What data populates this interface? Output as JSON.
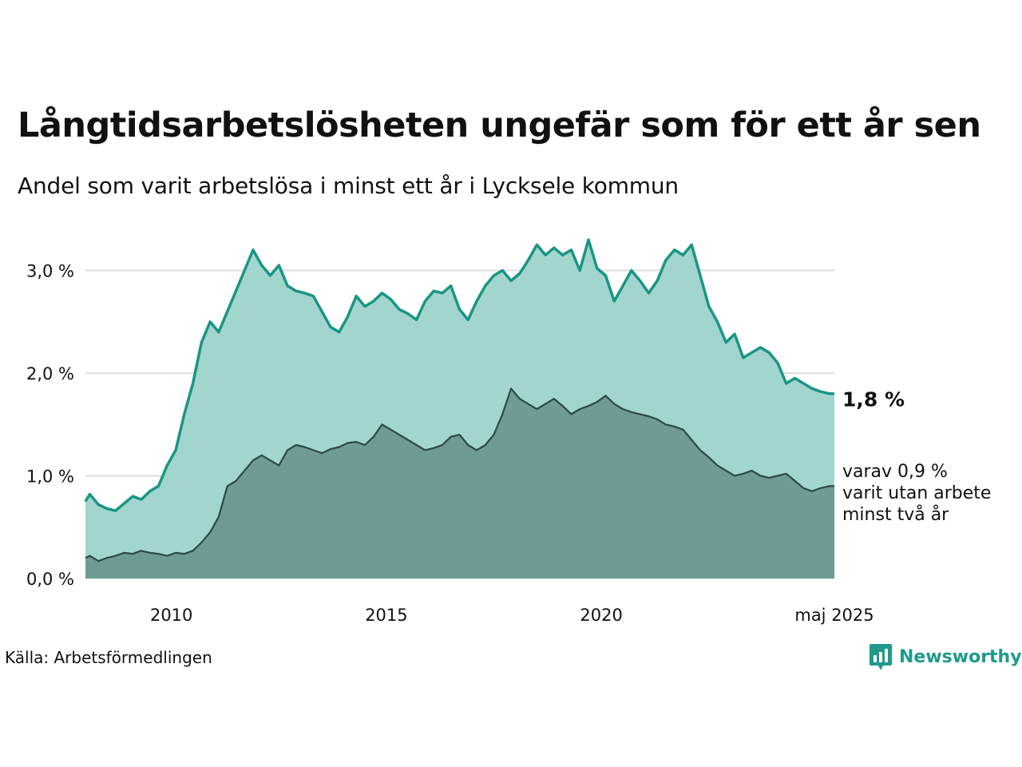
{
  "title": "Långtidsarbetslösheten ungefär som för ett år sen",
  "subtitle": "Andel som varit arbetslösa i minst ett år i Lycksele kommun",
  "source": "Källa: Arbetsförmedlingen",
  "brand": "Newsworthy",
  "colors": {
    "primary_line": "#1a9585",
    "primary_fill": "#a3d5cf",
    "secondary_line": "#2a4a44",
    "secondary_fill": "#6e9c95",
    "grid": "#dddddd",
    "brand": "#1f9a8c"
  },
  "chart_data": {
    "type": "area",
    "x_ticks": [
      "2010",
      "2015",
      "2020",
      "maj 2025"
    ],
    "y_ticks": [
      "0,0 %",
      "1,0 %",
      "2,0 %",
      "3,0 %"
    ],
    "ylim": [
      0,
      3.3
    ],
    "xlim": [
      "2008-01",
      "2025-05"
    ],
    "end_label_primary": "1,8 %",
    "end_label_secondary": [
      "varav 0,9 %",
      "varit utan arbete",
      "minst två år"
    ],
    "series": [
      {
        "key": "minst_ett_ar",
        "values": [
          [
            2008.0,
            0.75
          ],
          [
            2008.1,
            0.82
          ],
          [
            2008.3,
            0.72
          ],
          [
            2008.5,
            0.68
          ],
          [
            2008.7,
            0.66
          ],
          [
            2008.9,
            0.73
          ],
          [
            2009.1,
            0.8
          ],
          [
            2009.3,
            0.77
          ],
          [
            2009.5,
            0.85
          ],
          [
            2009.7,
            0.9
          ],
          [
            2009.9,
            1.1
          ],
          [
            2010.1,
            1.25
          ],
          [
            2010.3,
            1.6
          ],
          [
            2010.5,
            1.9
          ],
          [
            2010.7,
            2.3
          ],
          [
            2010.9,
            2.5
          ],
          [
            2011.1,
            2.4
          ],
          [
            2011.3,
            2.6
          ],
          [
            2011.5,
            2.8
          ],
          [
            2011.7,
            3.0
          ],
          [
            2011.9,
            3.2
          ],
          [
            2012.1,
            3.05
          ],
          [
            2012.3,
            2.95
          ],
          [
            2012.5,
            3.05
          ],
          [
            2012.7,
            2.85
          ],
          [
            2012.9,
            2.8
          ],
          [
            2013.1,
            2.78
          ],
          [
            2013.3,
            2.75
          ],
          [
            2013.5,
            2.6
          ],
          [
            2013.7,
            2.45
          ],
          [
            2013.9,
            2.4
          ],
          [
            2014.1,
            2.55
          ],
          [
            2014.3,
            2.75
          ],
          [
            2014.5,
            2.65
          ],
          [
            2014.7,
            2.7
          ],
          [
            2014.9,
            2.78
          ],
          [
            2015.1,
            2.72
          ],
          [
            2015.3,
            2.62
          ],
          [
            2015.5,
            2.58
          ],
          [
            2015.7,
            2.52
          ],
          [
            2015.9,
            2.7
          ],
          [
            2016.1,
            2.8
          ],
          [
            2016.3,
            2.78
          ],
          [
            2016.5,
            2.85
          ],
          [
            2016.7,
            2.62
          ],
          [
            2016.9,
            2.52
          ],
          [
            2017.1,
            2.7
          ],
          [
            2017.3,
            2.85
          ],
          [
            2017.5,
            2.95
          ],
          [
            2017.7,
            3.0
          ],
          [
            2017.9,
            2.9
          ],
          [
            2018.1,
            2.97
          ],
          [
            2018.3,
            3.1
          ],
          [
            2018.5,
            3.25
          ],
          [
            2018.7,
            3.15
          ],
          [
            2018.9,
            3.22
          ],
          [
            2019.1,
            3.15
          ],
          [
            2019.3,
            3.2
          ],
          [
            2019.5,
            3.0
          ],
          [
            2019.7,
            3.3
          ],
          [
            2019.9,
            3.02
          ],
          [
            2020.1,
            2.95
          ],
          [
            2020.3,
            2.7
          ],
          [
            2020.5,
            2.85
          ],
          [
            2020.7,
            3.0
          ],
          [
            2020.9,
            2.9
          ],
          [
            2021.1,
            2.78
          ],
          [
            2021.3,
            2.9
          ],
          [
            2021.5,
            3.1
          ],
          [
            2021.7,
            3.2
          ],
          [
            2021.9,
            3.15
          ],
          [
            2022.1,
            3.25
          ],
          [
            2022.3,
            2.95
          ],
          [
            2022.5,
            2.65
          ],
          [
            2022.7,
            2.5
          ],
          [
            2022.9,
            2.3
          ],
          [
            2023.1,
            2.38
          ],
          [
            2023.3,
            2.15
          ],
          [
            2023.5,
            2.2
          ],
          [
            2023.7,
            2.25
          ],
          [
            2023.9,
            2.2
          ],
          [
            2024.1,
            2.1
          ],
          [
            2024.3,
            1.9
          ],
          [
            2024.5,
            1.95
          ],
          [
            2024.7,
            1.9
          ],
          [
            2024.9,
            1.85
          ],
          [
            2025.1,
            1.82
          ],
          [
            2025.3,
            1.8
          ],
          [
            2025.42,
            1.8
          ]
        ]
      },
      {
        "key": "minst_tva_ar",
        "values": [
          [
            2008.0,
            0.2
          ],
          [
            2008.1,
            0.22
          ],
          [
            2008.3,
            0.17
          ],
          [
            2008.5,
            0.2
          ],
          [
            2008.7,
            0.22
          ],
          [
            2008.9,
            0.25
          ],
          [
            2009.1,
            0.24
          ],
          [
            2009.3,
            0.27
          ],
          [
            2009.5,
            0.25
          ],
          [
            2009.7,
            0.24
          ],
          [
            2009.9,
            0.22
          ],
          [
            2010.1,
            0.25
          ],
          [
            2010.3,
            0.24
          ],
          [
            2010.5,
            0.27
          ],
          [
            2010.7,
            0.35
          ],
          [
            2010.9,
            0.45
          ],
          [
            2011.1,
            0.6
          ],
          [
            2011.3,
            0.9
          ],
          [
            2011.5,
            0.95
          ],
          [
            2011.7,
            1.05
          ],
          [
            2011.9,
            1.15
          ],
          [
            2012.1,
            1.2
          ],
          [
            2012.3,
            1.15
          ],
          [
            2012.5,
            1.1
          ],
          [
            2012.7,
            1.25
          ],
          [
            2012.9,
            1.3
          ],
          [
            2013.1,
            1.28
          ],
          [
            2013.3,
            1.25
          ],
          [
            2013.5,
            1.22
          ],
          [
            2013.7,
            1.26
          ],
          [
            2013.9,
            1.28
          ],
          [
            2014.1,
            1.32
          ],
          [
            2014.3,
            1.33
          ],
          [
            2014.5,
            1.3
          ],
          [
            2014.7,
            1.38
          ],
          [
            2014.9,
            1.5
          ],
          [
            2015.1,
            1.45
          ],
          [
            2015.3,
            1.4
          ],
          [
            2015.5,
            1.35
          ],
          [
            2015.7,
            1.3
          ],
          [
            2015.9,
            1.25
          ],
          [
            2016.1,
            1.27
          ],
          [
            2016.3,
            1.3
          ],
          [
            2016.5,
            1.38
          ],
          [
            2016.7,
            1.4
          ],
          [
            2016.9,
            1.3
          ],
          [
            2017.1,
            1.25
          ],
          [
            2017.3,
            1.3
          ],
          [
            2017.5,
            1.4
          ],
          [
            2017.7,
            1.6
          ],
          [
            2017.9,
            1.85
          ],
          [
            2018.1,
            1.75
          ],
          [
            2018.3,
            1.7
          ],
          [
            2018.5,
            1.65
          ],
          [
            2018.7,
            1.7
          ],
          [
            2018.9,
            1.75
          ],
          [
            2019.1,
            1.68
          ],
          [
            2019.3,
            1.6
          ],
          [
            2019.5,
            1.65
          ],
          [
            2019.7,
            1.68
          ],
          [
            2019.9,
            1.72
          ],
          [
            2020.1,
            1.78
          ],
          [
            2020.3,
            1.7
          ],
          [
            2020.5,
            1.65
          ],
          [
            2020.7,
            1.62
          ],
          [
            2020.9,
            1.6
          ],
          [
            2021.1,
            1.58
          ],
          [
            2021.3,
            1.55
          ],
          [
            2021.5,
            1.5
          ],
          [
            2021.7,
            1.48
          ],
          [
            2021.9,
            1.45
          ],
          [
            2022.1,
            1.35
          ],
          [
            2022.3,
            1.25
          ],
          [
            2022.5,
            1.18
          ],
          [
            2022.7,
            1.1
          ],
          [
            2022.9,
            1.05
          ],
          [
            2023.1,
            1.0
          ],
          [
            2023.3,
            1.02
          ],
          [
            2023.5,
            1.05
          ],
          [
            2023.7,
            1.0
          ],
          [
            2023.9,
            0.98
          ],
          [
            2024.1,
            1.0
          ],
          [
            2024.3,
            1.02
          ],
          [
            2024.5,
            0.95
          ],
          [
            2024.7,
            0.88
          ],
          [
            2024.9,
            0.85
          ],
          [
            2025.1,
            0.88
          ],
          [
            2025.3,
            0.9
          ],
          [
            2025.42,
            0.9
          ]
        ]
      }
    ]
  }
}
